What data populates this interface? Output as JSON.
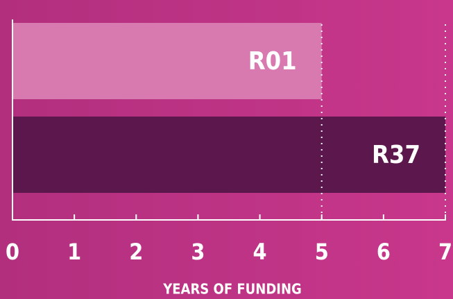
{
  "chart_data": {
    "type": "bar",
    "orientation": "horizontal",
    "categories": [
      "R01",
      "R37"
    ],
    "values": [
      5,
      7
    ],
    "colors": [
      "#d879b0",
      "#5c174c"
    ],
    "xlabel": "YEARS OF FUNDING",
    "xlim": [
      0,
      7
    ],
    "xticks": [
      0,
      1,
      2,
      3,
      4,
      5,
      6,
      7
    ]
  }
}
